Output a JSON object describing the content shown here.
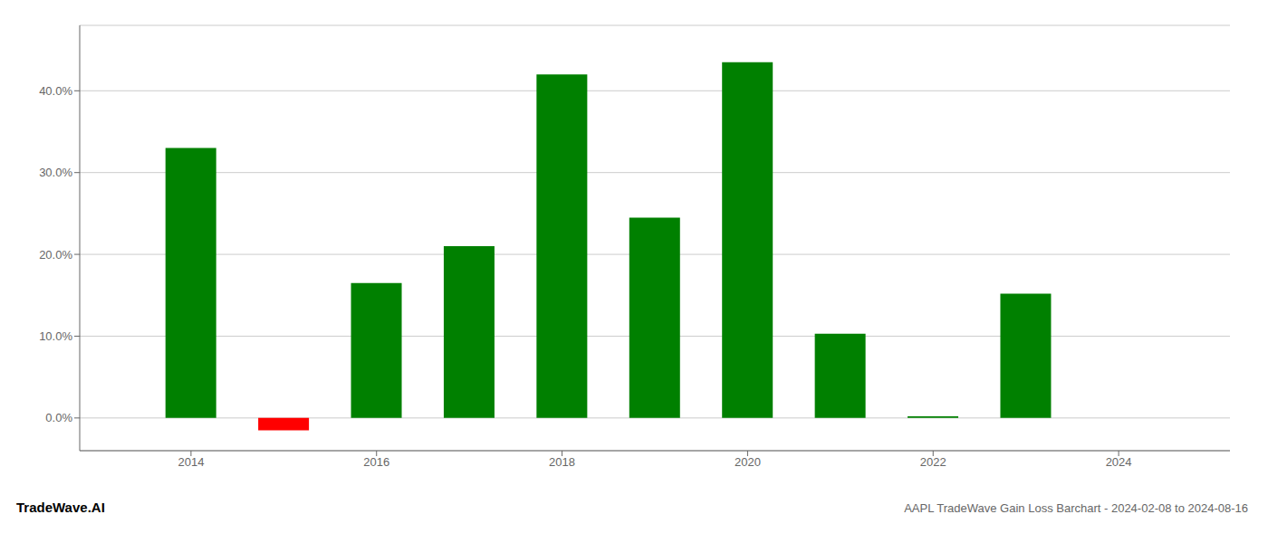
{
  "chart_data": {
    "type": "bar",
    "x": [
      2014,
      2015,
      2016,
      2017,
      2018,
      2019,
      2020,
      2021,
      2022,
      2023
    ],
    "values": [
      0.33,
      -0.015,
      0.165,
      0.21,
      0.42,
      0.245,
      0.435,
      0.103,
      0.002,
      0.152
    ],
    "colors": [
      "#008000",
      "#ff0000",
      "#008000",
      "#008000",
      "#008000",
      "#008000",
      "#008000",
      "#008000",
      "#008000",
      "#008000"
    ],
    "xlim": [
      2012.8,
      2025.2
    ],
    "xticks": [
      2014,
      2016,
      2018,
      2020,
      2022,
      2024
    ],
    "ylim": [
      -0.04,
      0.48
    ],
    "yticks": [
      {
        "value": 0.0,
        "label": "0.0%"
      },
      {
        "value": 0.1,
        "label": "10.0%"
      },
      {
        "value": 0.2,
        "label": "20.0%"
      },
      {
        "value": 0.3,
        "label": "30.0%"
      },
      {
        "value": 0.4,
        "label": "40.0%"
      }
    ],
    "grid": true,
    "annotations": [
      "TradeWave.AI",
      "AAPL TradeWave Gain Loss Barchart - 2024-02-08 to 2024-08-16"
    ]
  }
}
